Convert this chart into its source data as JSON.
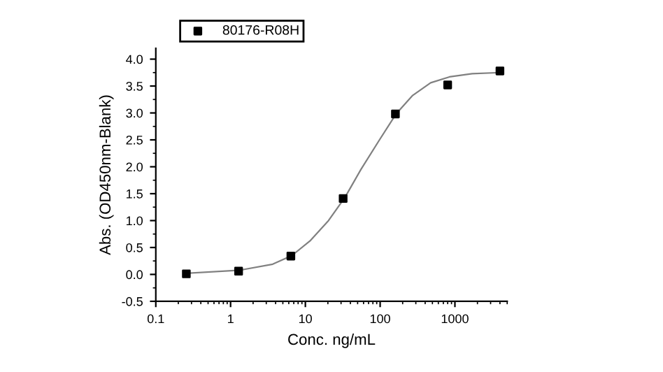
{
  "chart_data": {
    "type": "scatter",
    "xlabel": "Conc. ng/mL",
    "ylabel": "Abs. (OD450nm-Blank)",
    "log": "x",
    "xlim": [
      0.1,
      5000
    ],
    "xticks": [
      0.1,
      1,
      10,
      100,
      1000
    ],
    "ylim": [
      -0.5,
      4.2
    ],
    "yticks": [
      {
        "value": -0.5,
        "label": "-0.5"
      },
      {
        "value": 0,
        "label": "0.0"
      },
      {
        "value": 0.5,
        "label": "0.5"
      },
      {
        "value": 1,
        "label": "1.0"
      },
      {
        "value": 1.5,
        "label": "1.5"
      },
      {
        "value": 2,
        "label": "2.0"
      },
      {
        "value": 2.5,
        "label": "2.5"
      },
      {
        "value": 3,
        "label": "3.0"
      },
      {
        "value": 3.5,
        "label": "3.5"
      },
      {
        "value": 4,
        "label": "4.0"
      }
    ],
    "grid": false,
    "legend": "top left",
    "series": [
      {
        "name": "80176-R08H",
        "marker": "square",
        "color": "#000000",
        "x": [
          0.256,
          1.28,
          6.4,
          32,
          160,
          800,
          4000
        ],
        "values": [
          0.01,
          0.06,
          0.34,
          1.41,
          2.98,
          3.52,
          3.78
        ]
      },
      {
        "type": "line",
        "color": "#808080",
        "line_style": "solid",
        "marker": "none",
        "x": [
          0.256,
          1.35,
          3.66,
          6.6,
          11.5,
          20.4,
          33.8,
          55.3,
          98,
          163,
          269,
          474,
          845,
          1700,
          4000
        ],
        "values": [
          0.02,
          0.08,
          0.19,
          0.35,
          0.62,
          1.0,
          1.43,
          1.95,
          2.5,
          2.98,
          3.32,
          3.56,
          3.67,
          3.73,
          3.75
        ]
      }
    ]
  }
}
